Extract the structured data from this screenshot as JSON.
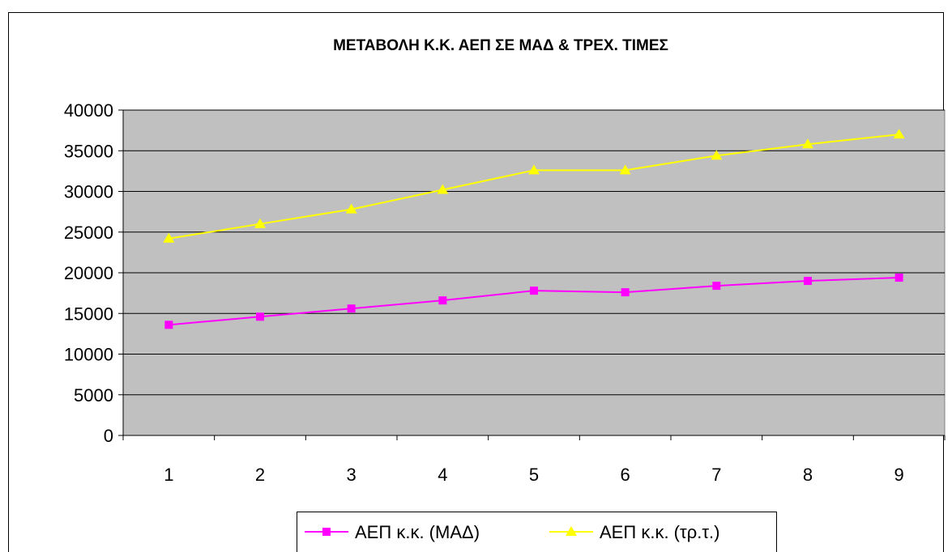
{
  "chart_data": {
    "type": "line",
    "title": "ΜΕΤΑΒΟΛΗ Κ.Κ. ΑΕΠ ΣΕ ΜΑΔ & ΤΡΕΧ. ΤΙΜΕΣ",
    "xlabel": "",
    "ylabel": "",
    "categories": [
      "1",
      "2",
      "3",
      "4",
      "5",
      "6",
      "7",
      "8",
      "9"
    ],
    "ylim": [
      0,
      40000
    ],
    "yticks": [
      "0",
      "5000",
      "10000",
      "15000",
      "20000",
      "25000",
      "30000",
      "35000",
      "40000"
    ],
    "grid": "horizontal",
    "legend_position": "bottom",
    "plot_background": "#c0c0c0",
    "series": [
      {
        "name": "ΑΕΠ κ.κ. (ΜΑΔ)",
        "marker": "square",
        "color": "#ff00ff",
        "values": [
          13600,
          14600,
          15600,
          16600,
          17800,
          17600,
          18400,
          19000,
          19400
        ]
      },
      {
        "name": "ΑΕΠ κ.κ. (τρ.τ.)",
        "marker": "triangle",
        "color": "#ffff00",
        "values": [
          24200,
          26000,
          27800,
          30200,
          32600,
          32600,
          34400,
          35800,
          37000
        ]
      }
    ]
  }
}
